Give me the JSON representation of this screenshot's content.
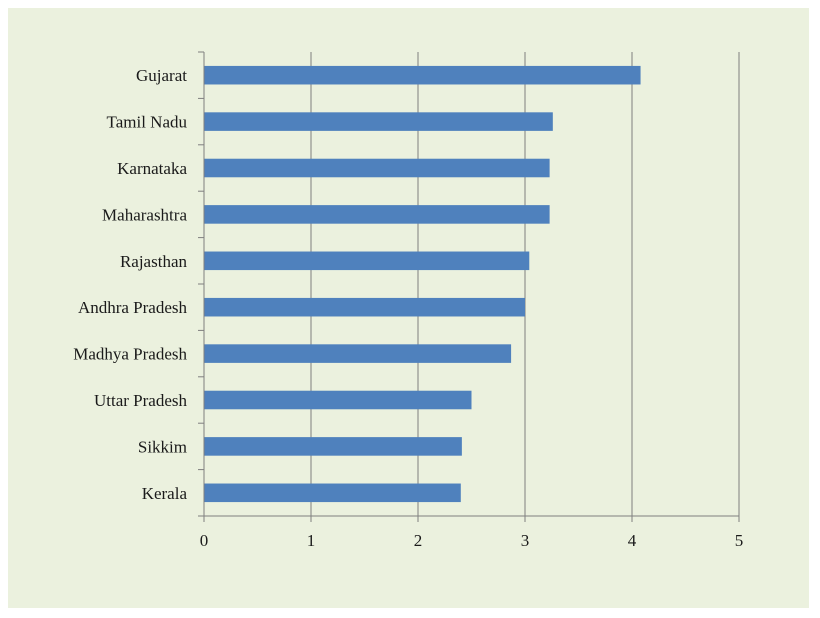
{
  "chart_data": {
    "type": "bar",
    "orientation": "horizontal",
    "title": "",
    "xlabel": "",
    "ylabel": "",
    "categories": [
      "Gujarat",
      "Tamil Nadu",
      "Karnataka",
      "Maharashtra",
      "Rajasthan",
      "Andhra Pradesh",
      "Madhya Pradesh",
      "Uttar Pradesh",
      "Sikkim",
      "Kerala"
    ],
    "values": [
      4.08,
      3.26,
      3.23,
      3.23,
      3.04,
      3.0,
      2.87,
      2.5,
      2.41,
      2.4
    ],
    "xlim": [
      0,
      5
    ],
    "xticks": [
      "0",
      "1",
      "2",
      "3",
      "4",
      "5"
    ],
    "grid": "vertical",
    "legend": "none",
    "colors": {
      "bar": "#4f81bd",
      "background": "#ebf1de",
      "grid": "#7f7f7f",
      "axis": "#7f7f7f"
    }
  }
}
